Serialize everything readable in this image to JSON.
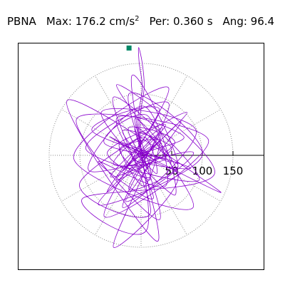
{
  "header": {
    "station": "PBNA",
    "max_label": "Max:",
    "max_value": "176.2",
    "max_unit": "cm/s",
    "max_unit_exp": "2",
    "per_label": "Per:",
    "per_value": "0.360 s",
    "ang_label": "Ang:",
    "ang_value": "96.4"
  },
  "colors": {
    "trace": "#8800cc",
    "marker": "#008866",
    "grid": "#888888",
    "axis": "#000000"
  },
  "chart_data": {
    "type": "line",
    "title": "PBNA  Max: 176.2 cm/s2  Per: 0.360 s  Ang: 96.4",
    "polar": true,
    "rings": [
      50,
      100,
      150
    ],
    "radial_ticks": [
      "50",
      "100",
      "150"
    ],
    "spoke_angles_deg": [
      0,
      30,
      60,
      90,
      120,
      150,
      180,
      210,
      240,
      270,
      300,
      330
    ],
    "xlim": [
      -196,
      196
    ],
    "ylim": [
      -176,
      176
    ],
    "max": {
      "angle_deg": 96.4,
      "magnitude": 176.2
    },
    "series": [
      {
        "points": [
          [
            -5,
            -10
          ],
          [
            10,
            5
          ],
          [
            -15,
            12
          ],
          [
            20,
            -8
          ],
          [
            -25,
            -20
          ],
          [
            30,
            25
          ],
          [
            -35,
            10
          ],
          [
            15,
            -40
          ],
          [
            -10,
            45
          ],
          [
            40,
            -5
          ],
          [
            -45,
            -15
          ],
          [
            5,
            30
          ],
          [
            25,
            -30
          ],
          [
            -30,
            40
          ],
          [
            50,
            10
          ],
          [
            -50,
            -35
          ],
          [
            35,
            45
          ],
          [
            -20,
            -55
          ],
          [
            60,
            -15
          ],
          [
            -60,
            20
          ],
          [
            10,
            65
          ],
          [
            40,
            -50
          ],
          [
            -70,
            -10
          ],
          [
            20,
            -70
          ],
          [
            -40,
            60
          ],
          [
            70,
            30
          ],
          [
            -15,
            -5
          ],
          [
            80,
            -20
          ],
          [
            -80,
            40
          ],
          [
            30,
            75
          ],
          [
            -55,
            -60
          ],
          [
            65,
            55
          ],
          [
            -25,
            -75
          ],
          [
            85,
            5
          ],
          [
            -85,
            -25
          ],
          [
            5,
            80
          ],
          [
            55,
            -65
          ],
          [
            -65,
            70
          ],
          [
            90,
            40
          ],
          [
            -30,
            -85
          ],
          [
            45,
            85
          ],
          [
            -90,
            10
          ],
          [
            95,
            -40
          ],
          [
            -45,
            95
          ],
          [
            15,
            -95
          ],
          [
            -100,
            -45
          ],
          [
            75,
            70
          ],
          [
            -70,
            -80
          ],
          [
            100,
            0
          ],
          [
            -20,
            100
          ],
          [
            30,
            -105
          ],
          [
            -105,
            60
          ],
          [
            110,
            25
          ],
          [
            -60,
            -100
          ],
          [
            45,
            110
          ],
          [
            -110,
            -5
          ],
          [
            85,
            -85
          ],
          [
            -40,
            115
          ],
          [
            120,
            -30
          ],
          [
            -95,
            -70
          ],
          [
            10,
            -120
          ],
          [
            -15,
            130
          ],
          [
            60,
            -20
          ],
          [
            -50,
            30
          ],
          [
            130,
            -60
          ],
          [
            -120,
            90
          ],
          [
            25,
            -140
          ],
          [
            -5,
            35
          ],
          [
            60,
            -40
          ],
          [
            -45,
            -150
          ],
          [
            20,
            10
          ],
          [
            -30,
            -25
          ],
          [
            40,
            50
          ],
          [
            -55,
            5
          ],
          [
            15,
            -35
          ],
          [
            -10,
            60
          ],
          [
            50,
            -10
          ],
          [
            -35,
            20
          ],
          [
            5,
            -50
          ],
          [
            30,
            35
          ],
          [
            -40,
            -40
          ],
          [
            55,
            20
          ],
          [
            -20,
            45
          ],
          [
            10,
            -20
          ],
          [
            -5,
            0
          ]
        ]
      },
      {
        "name": "",
        "points": [
          [
            0,
            10
          ],
          [
            -5,
            60
          ],
          [
            2,
            110
          ],
          [
            -3,
            150
          ],
          [
            -4,
            176
          ],
          [
            2,
            150
          ],
          [
            5,
            110
          ],
          [
            -2,
            60
          ],
          [
            0,
            10
          ]
        ]
      }
    ]
  }
}
